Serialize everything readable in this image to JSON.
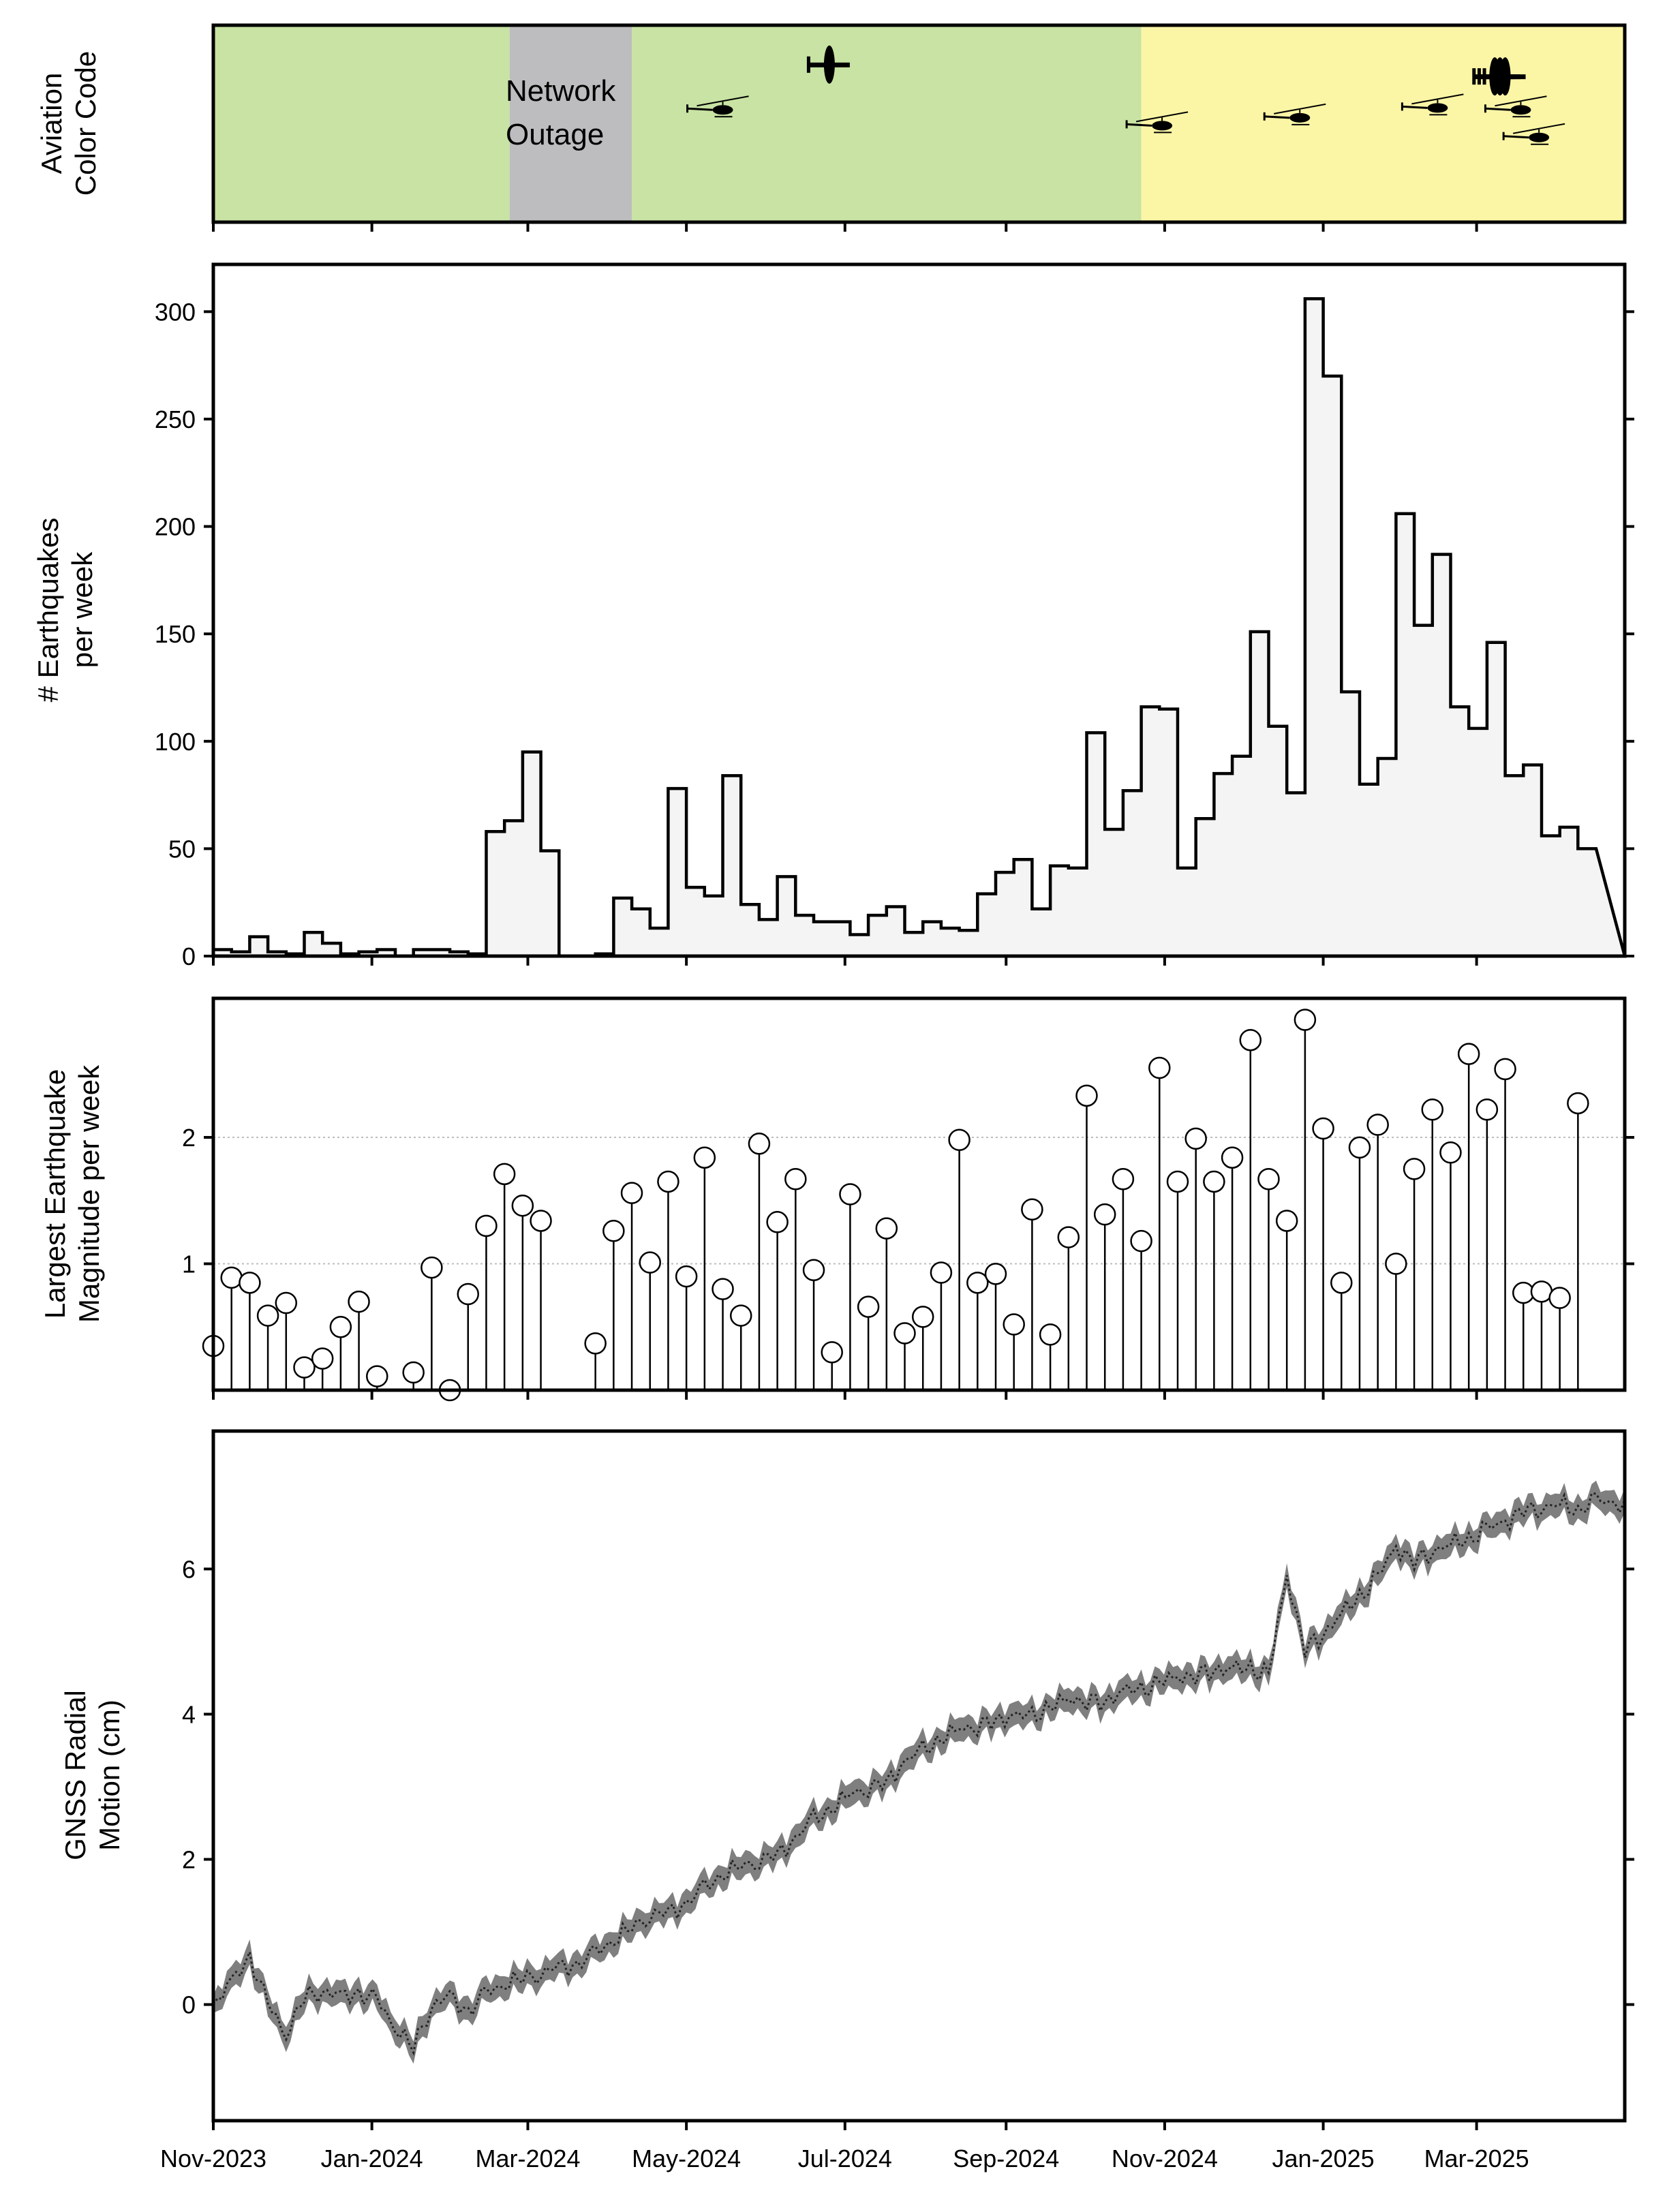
{
  "chart_data": [
    {
      "type": "area",
      "ylabel": [
        "Aviation",
        "Color Code"
      ],
      "annotation": "Network Outage",
      "annotation_lines": [
        "Network",
        "Outage"
      ],
      "x_ticks": [
        "Nov-2023",
        "Jan-2024",
        "Mar-2024",
        "May-2024",
        "Jul-2024",
        "Sep-2024",
        "Nov-2024",
        "Jan-2025",
        "Mar-2025"
      ],
      "xlim": [
        "2023-11-01",
        "2025-04-27"
      ],
      "periods": [
        {
          "state": "GREEN",
          "start": "2023-11-01",
          "end": "2024-02-23",
          "color": "#c8e3a3"
        },
        {
          "state": "UNASSIGNED",
          "start": "2024-02-23",
          "end": "2024-04-10",
          "color": "#bdbcbe"
        },
        {
          "state": "GREEN",
          "start": "2024-04-10",
          "end": "2024-10-23",
          "color": "#c8e3a3"
        },
        {
          "state": "YELLOW",
          "start": "2024-10-23",
          "end": "2025-04-27",
          "color": "#fbf6a6"
        }
      ],
      "overflights": [
        {
          "kind": "plane",
          "date": "2024-06-25",
          "level": 0.8
        },
        {
          "kind": "helicopter",
          "date": "2024-05-15",
          "level": 0.57
        },
        {
          "kind": "helicopter",
          "date": "2024-10-31",
          "level": 0.49
        },
        {
          "kind": "helicopter",
          "date": "2024-12-23",
          "level": 0.53
        },
        {
          "kind": "helicopter",
          "date": "2025-02-14",
          "level": 0.58
        },
        {
          "kind": "plane",
          "date": "2025-03-08",
          "level": 0.74
        },
        {
          "kind": "plane",
          "date": "2025-03-10",
          "level": 0.74
        },
        {
          "kind": "plane",
          "date": "2025-03-12",
          "level": 0.74
        },
        {
          "kind": "helicopter",
          "date": "2025-03-18",
          "level": 0.57
        },
        {
          "kind": "helicopter",
          "date": "2025-03-25",
          "level": 0.43
        }
      ]
    },
    {
      "type": "bar",
      "ylabel": [
        "# Earthquakes",
        "per week"
      ],
      "ylim": [
        0,
        322
      ],
      "y_ticks": [
        0,
        50,
        100,
        150,
        200,
        250,
        300
      ],
      "start_week": "2023-11-01",
      "weekly_counts": [
        3,
        2,
        9,
        2,
        1,
        11,
        6,
        1,
        2,
        3,
        0,
        3,
        3,
        2,
        1,
        58,
        63,
        95,
        49,
        0,
        0,
        1,
        27,
        22,
        13,
        78,
        32,
        28,
        84,
        24,
        17,
        37,
        19,
        16,
        16,
        10,
        19,
        23,
        11,
        16,
        13,
        12,
        29,
        39,
        45,
        22,
        42,
        41,
        104,
        59,
        77,
        116,
        115,
        41,
        64,
        85,
        93,
        151,
        107,
        76,
        306,
        270,
        123,
        80,
        92,
        206,
        154,
        187,
        116,
        106,
        146,
        84,
        89,
        56,
        60,
        50
      ]
    },
    {
      "type": "scatter",
      "ylabel": [
        "Largest Earthquake",
        "Magnitude per week"
      ],
      "ylim": [
        0,
        3.1
      ],
      "y_ticks": [
        1,
        2
      ],
      "grid_lines": [
        1,
        2
      ],
      "start_week": "2023-11-01",
      "weekly_max_magnitude": [
        0.35,
        0.89,
        0.85,
        0.59,
        0.69,
        0.18,
        0.25,
        0.5,
        0.7,
        0.11,
        null,
        0.14,
        0.97,
        0.0,
        0.76,
        1.3,
        1.71,
        1.46,
        1.34,
        null,
        null,
        0.37,
        1.26,
        1.56,
        1.01,
        1.65,
        0.9,
        1.84,
        0.8,
        0.59,
        1.95,
        1.33,
        1.67,
        0.95,
        0.3,
        1.55,
        0.66,
        1.28,
        0.45,
        0.58,
        0.93,
        1.98,
        0.85,
        0.92,
        0.52,
        1.43,
        0.44,
        1.21,
        2.33,
        1.39,
        1.67,
        1.18,
        2.55,
        1.65,
        1.99,
        1.65,
        1.84,
        2.77,
        1.67,
        1.34,
        2.93,
        2.07,
        0.85,
        1.92,
        2.1,
        1.0,
        1.75,
        2.22,
        1.88,
        2.66,
        2.22,
        2.54,
        0.77,
        0.78,
        0.73,
        2.27
      ]
    },
    {
      "type": "line",
      "ylabel": [
        "GNSS Radial",
        "Motion (cm)"
      ],
      "ylim": [
        -1.6,
        7.9
      ],
      "y_ticks": [
        0,
        2,
        4,
        6
      ],
      "uncertainty_band": true,
      "series": [
        {
          "unit": "cm",
          "points": [
            [
              "2023-11-01",
              0.0
            ],
            [
              "2023-11-08",
              0.3
            ],
            [
              "2023-11-15",
              0.65
            ],
            [
              "2023-11-22",
              0.0
            ],
            [
              "2023-11-29",
              -0.4
            ],
            [
              "2023-12-06",
              0.1
            ],
            [
              "2023-12-13",
              0.2
            ],
            [
              "2023-12-20",
              0.1
            ],
            [
              "2023-12-27",
              0.15
            ],
            [
              "2024-01-03",
              0.05
            ],
            [
              "2024-01-10",
              -0.3
            ],
            [
              "2024-01-17",
              -0.6
            ],
            [
              "2024-01-24",
              0.0
            ],
            [
              "2024-01-31",
              0.1
            ],
            [
              "2024-02-07",
              -0.1
            ],
            [
              "2024-02-14",
              0.15
            ],
            [
              "2024-02-21",
              0.3
            ],
            [
              "2024-02-28",
              0.35
            ],
            [
              "2024-03-06",
              0.45
            ],
            [
              "2024-03-13",
              0.5
            ],
            [
              "2024-03-20",
              0.55
            ],
            [
              "2024-03-27",
              0.7
            ],
            [
              "2024-04-03",
              0.9
            ],
            [
              "2024-04-10",
              1.05
            ],
            [
              "2024-04-17",
              1.25
            ],
            [
              "2024-04-24",
              1.25
            ],
            [
              "2024-05-01",
              1.4
            ],
            [
              "2024-05-08",
              1.6
            ],
            [
              "2024-05-15",
              1.8
            ],
            [
              "2024-05-22",
              1.9
            ],
            [
              "2024-05-29",
              2.0
            ],
            [
              "2024-06-05",
              2.05
            ],
            [
              "2024-06-12",
              2.3
            ],
            [
              "2024-06-19",
              2.55
            ],
            [
              "2024-06-26",
              2.7
            ],
            [
              "2024-07-03",
              2.9
            ],
            [
              "2024-07-10",
              3.0
            ],
            [
              "2024-07-17",
              3.05
            ],
            [
              "2024-07-24",
              3.35
            ],
            [
              "2024-07-31",
              3.5
            ],
            [
              "2024-08-07",
              3.65
            ],
            [
              "2024-08-14",
              3.8
            ],
            [
              "2024-08-21",
              3.85
            ],
            [
              "2024-08-28",
              3.9
            ],
            [
              "2024-09-04",
              4.0
            ],
            [
              "2024-09-11",
              3.95
            ],
            [
              "2024-09-18",
              4.1
            ],
            [
              "2024-09-25",
              4.2
            ],
            [
              "2024-10-02",
              4.2
            ],
            [
              "2024-10-09",
              4.15
            ],
            [
              "2024-10-16",
              4.35
            ],
            [
              "2024-10-23",
              4.3
            ],
            [
              "2024-10-30",
              4.45
            ],
            [
              "2024-11-06",
              4.5
            ],
            [
              "2024-11-13",
              4.55
            ],
            [
              "2024-11-20",
              4.6
            ],
            [
              "2024-11-27",
              4.65
            ],
            [
              "2024-12-04",
              4.6
            ],
            [
              "2024-12-11",
              4.55
            ],
            [
              "2024-12-18",
              5.9
            ],
            [
              "2024-12-25",
              4.9
            ],
            [
              "2025-01-01",
              5.1
            ],
            [
              "2025-01-08",
              5.4
            ],
            [
              "2025-01-15",
              5.6
            ],
            [
              "2025-01-22",
              5.9
            ],
            [
              "2025-01-29",
              6.3
            ],
            [
              "2025-02-05",
              6.1
            ],
            [
              "2025-02-12",
              6.25
            ],
            [
              "2025-02-19",
              6.35
            ],
            [
              "2025-02-26",
              6.4
            ],
            [
              "2025-03-05",
              6.55
            ],
            [
              "2025-03-12",
              6.65
            ],
            [
              "2025-03-19",
              6.8
            ],
            [
              "2025-03-26",
              6.85
            ],
            [
              "2025-04-02",
              6.9
            ],
            [
              "2025-04-09",
              6.8
            ],
            [
              "2025-04-16",
              6.95
            ],
            [
              "2025-04-23",
              6.9
            ],
            [
              "2025-04-27",
              6.95
            ]
          ]
        }
      ]
    }
  ]
}
